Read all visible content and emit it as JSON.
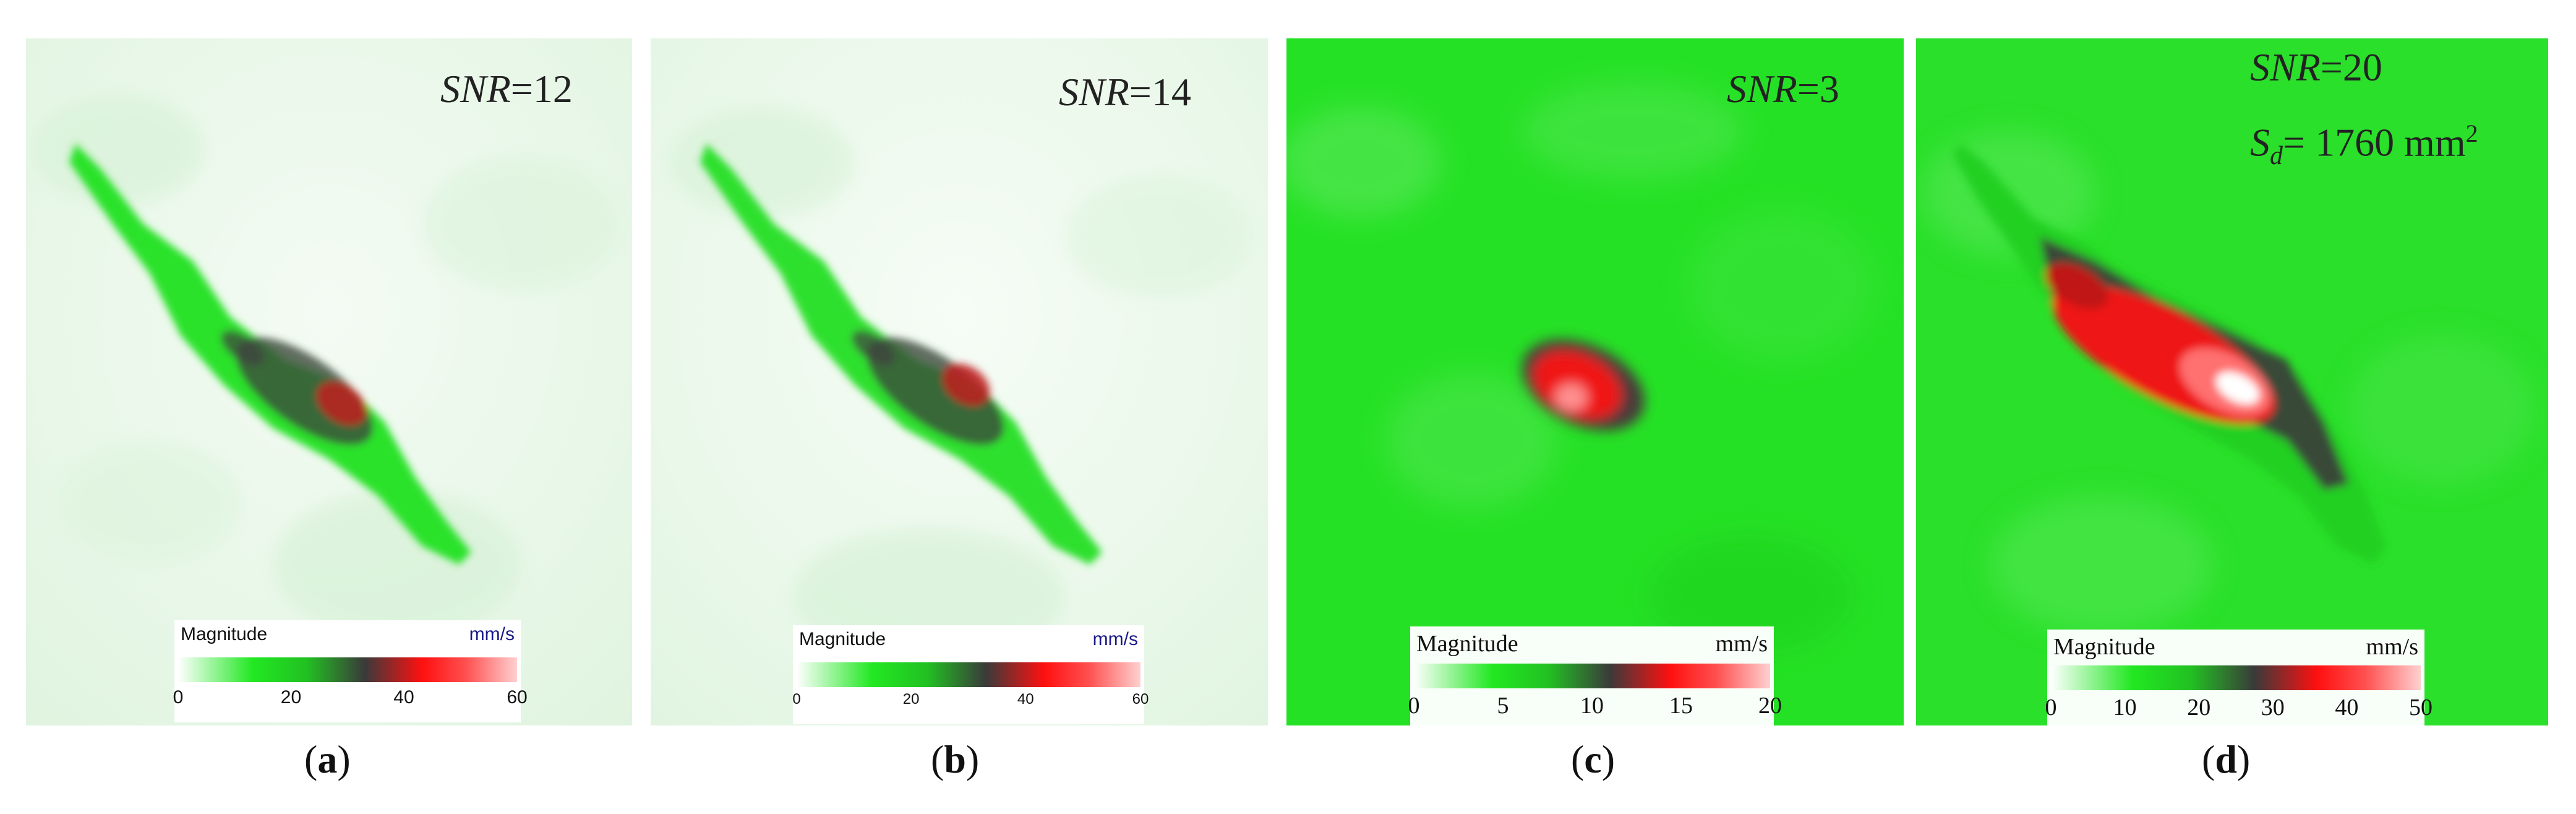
{
  "panels": [
    {
      "snr_label": "SNR",
      "snr_value": "=12",
      "legend": {
        "title": "Magnitude",
        "unit": "mm/s",
        "ticks": [
          "0",
          "20",
          "40",
          "60"
        ],
        "max": 60
      },
      "caption": "a"
    },
    {
      "snr_label": "SNR",
      "snr_value": "=14",
      "legend": {
        "title": "Magnitude",
        "unit": "mm/s",
        "ticks": [
          "0",
          "20",
          "40",
          "60"
        ],
        "max": 60
      },
      "caption": "b"
    },
    {
      "snr_label": "SNR",
      "snr_value": "=3",
      "legend": {
        "title": "Magnitude",
        "unit": "mm/s",
        "ticks": [
          "0",
          "5",
          "10",
          "15",
          "20"
        ],
        "max": 20
      },
      "caption": "c"
    },
    {
      "snr_label": "SNR",
      "snr_value": "=20",
      "sd_label": "S",
      "sd_sub": "d",
      "sd_value": "= 1760 mm",
      "sd_sup": "2",
      "legend": {
        "title": "Magnitude",
        "unit": "mm/s",
        "ticks": [
          "0",
          "10",
          "20",
          "30",
          "40",
          "50"
        ],
        "max": 50
      },
      "caption": "d"
    }
  ],
  "colors": {
    "green": "#22e822",
    "dark": "#3a3a3a",
    "red": "#ff1010",
    "pink": "#ffb4b4",
    "white": "#ffffff"
  }
}
